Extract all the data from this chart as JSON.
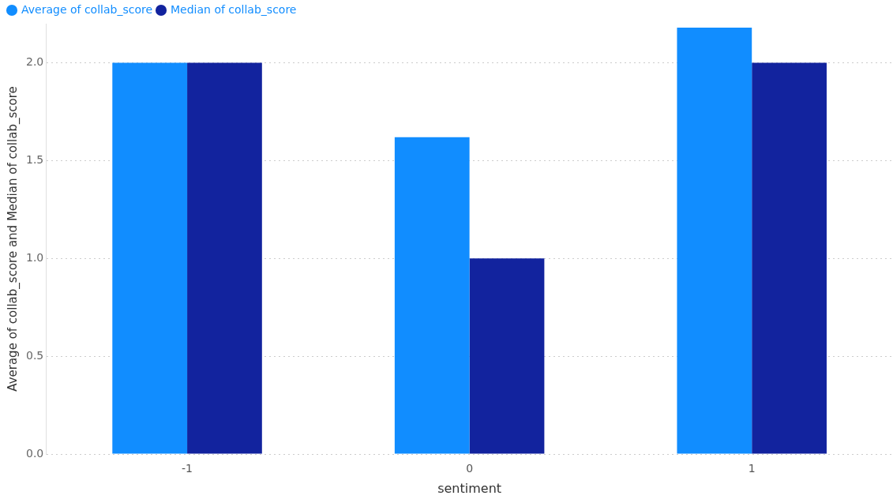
{
  "chart_data": {
    "type": "bar",
    "xlabel": "sentiment",
    "ylabel": "Average of collab_score and Median of collab_score",
    "categories": [
      "-1",
      "0",
      "1"
    ],
    "series": [
      {
        "name": "Average of collab_score",
        "color": "#118dff",
        "values": [
          2.0,
          1.62,
          2.18
        ]
      },
      {
        "name": "Median of collab_score",
        "color": "#12239e",
        "values": [
          2.0,
          1.0,
          2.0
        ]
      }
    ],
    "ylim": [
      0,
      2.2
    ],
    "yticks": [
      {
        "value": 0,
        "label": "0.0"
      },
      {
        "value": 0.5,
        "label": "0.5"
      },
      {
        "value": 1,
        "label": "1.0"
      },
      {
        "value": 1.5,
        "label": "1.5"
      },
      {
        "value": 2,
        "label": "2.0"
      }
    ],
    "grid": "y",
    "legend": "top left"
  }
}
